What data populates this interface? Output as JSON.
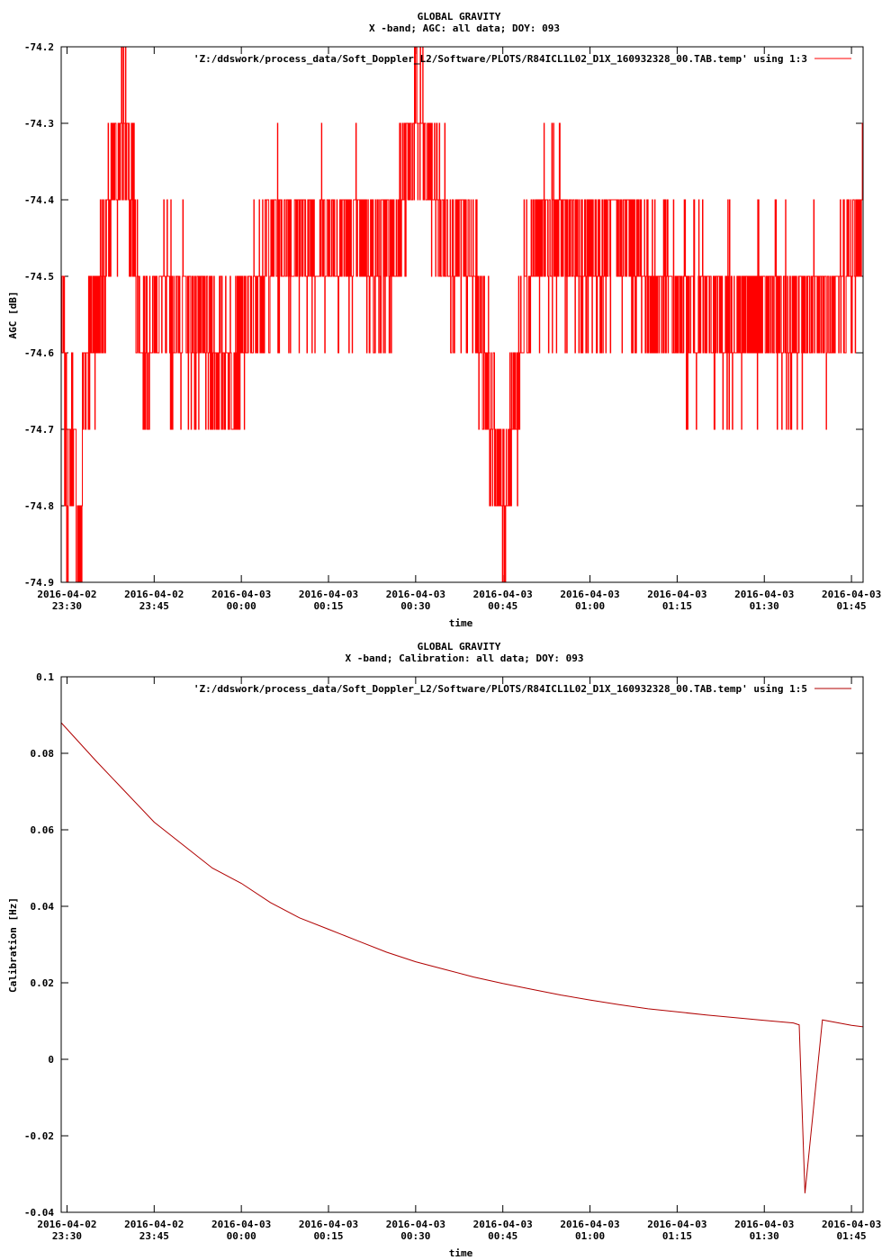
{
  "page": {
    "charts": [
      {
        "title": "GLOBAL GRAVITY",
        "subtitle": "X -band; AGC: all data; DOY: 093",
        "legend_label": "'Z:/ddswork/process_data/Soft_Doppler_L2/Software/PLOTS/R84ICL1L02_D1X_160932328_00.TAB.temp' using 1:3",
        "xlabel": "time",
        "ylabel": "AGC [dB]",
        "line_color": "#ff0000",
        "y_tick_labels": [
          "-74.2",
          "-74.3",
          "-74.4",
          "-74.5",
          "-74.6",
          "-74.7",
          "-74.8",
          "-74.9"
        ],
        "x_tick_labels": [
          [
            "2016-04-02",
            "23:30"
          ],
          [
            "2016-04-02",
            "23:45"
          ],
          [
            "2016-04-03",
            "00:00"
          ],
          [
            "2016-04-03",
            "00:15"
          ],
          [
            "2016-04-03",
            "00:30"
          ],
          [
            "2016-04-03",
            "00:45"
          ],
          [
            "2016-04-03",
            "01:00"
          ],
          [
            "2016-04-03",
            "01:15"
          ],
          [
            "2016-04-03",
            "01:30"
          ],
          [
            "2016-04-03",
            "01:45"
          ]
        ]
      },
      {
        "title": "GLOBAL GRAVITY",
        "subtitle": "X -band; Calibration: all data; DOY: 093",
        "legend_label": "'Z:/ddswork/process_data/Soft_Doppler_L2/Software/PLOTS/R84ICL1L02_D1X_160932328_00.TAB.temp' using 1:5",
        "xlabel": "time",
        "ylabel": "Calibration [Hz]",
        "line_color": "#ff0000",
        "y_tick_labels": [
          "0.1",
          "0.08",
          "0.06",
          "0.04",
          "0.02",
          "0",
          "-0.02",
          "-0.04"
        ],
        "x_tick_labels": [
          [
            "2016-04-02",
            "23:30"
          ],
          [
            "2016-04-02",
            "23:45"
          ],
          [
            "2016-04-03",
            "00:00"
          ],
          [
            "2016-04-03",
            "00:15"
          ],
          [
            "2016-04-03",
            "00:30"
          ],
          [
            "2016-04-03",
            "00:45"
          ],
          [
            "2016-04-03",
            "01:00"
          ],
          [
            "2016-04-03",
            "01:15"
          ],
          [
            "2016-04-03",
            "01:30"
          ],
          [
            "2016-04-03",
            "01:45"
          ]
        ]
      }
    ]
  },
  "chart_data": [
    {
      "type": "line",
      "title": "GLOBAL GRAVITY",
      "subtitle": "X -band; AGC: all data; DOY: 093",
      "xlabel": "time",
      "ylabel": "AGC [dB]",
      "x_range": [
        "2016-04-02 23:29",
        "2016-04-03 01:47"
      ],
      "ylim": [
        -74.9,
        -74.2
      ],
      "y_ticks": [
        -74.9,
        -74.8,
        -74.7,
        -74.6,
        -74.5,
        -74.4,
        -74.3,
        -74.2
      ],
      "x_ticks": [
        "2016-04-02 23:30",
        "2016-04-02 23:45",
        "2016-04-03 00:00",
        "2016-04-03 00:15",
        "2016-04-03 00:30",
        "2016-04-03 00:45",
        "2016-04-03 01:00",
        "2016-04-03 01:15",
        "2016-04-03 01:30",
        "2016-04-03 01:45"
      ],
      "grid": false,
      "legend_position": "top-right",
      "series": [
        {
          "name": "'Z:/ddswork/process_data/Soft_Doppler_L2/Software/PLOTS/R84ICL1L02_D1X_160932328_00.TAB.temp' using 1:3",
          "color": "#ff0000",
          "x": [
            "2016-04-02 23:29",
            "2016-04-02 23:30",
            "2016-04-02 23:31",
            "2016-04-02 23:32",
            "2016-04-02 23:33",
            "2016-04-02 23:35",
            "2016-04-02 23:40",
            "2016-04-02 23:43",
            "2016-04-02 23:45",
            "2016-04-02 23:50",
            "2016-04-02 23:55",
            "2016-04-03 00:00",
            "2016-04-03 00:05",
            "2016-04-03 00:10",
            "2016-04-03 00:15",
            "2016-04-03 00:20",
            "2016-04-03 00:25",
            "2016-04-03 00:30",
            "2016-04-03 00:35",
            "2016-04-03 00:40",
            "2016-04-03 00:45",
            "2016-04-03 00:50",
            "2016-04-03 00:55",
            "2016-04-03 01:00",
            "2016-04-03 01:05",
            "2016-04-03 01:10",
            "2016-04-03 01:15",
            "2016-04-03 01:20",
            "2016-04-03 01:25",
            "2016-04-03 01:30",
            "2016-04-03 01:35",
            "2016-04-03 01:40",
            "2016-04-03 01:45",
            "2016-04-03 01:47"
          ],
          "y": [
            -74.5,
            -74.8,
            -74.7,
            -74.9,
            -74.6,
            -74.55,
            -74.3,
            -74.6,
            -74.55,
            -74.55,
            -74.6,
            -74.6,
            -74.45,
            -74.45,
            -74.45,
            -74.45,
            -74.5,
            -74.3,
            -74.45,
            -74.5,
            -74.8,
            -74.45,
            -74.45,
            -74.5,
            -74.45,
            -74.5,
            -74.55,
            -74.55,
            -74.55,
            -74.55,
            -74.55,
            -74.55,
            -74.5,
            -74.4
          ]
        }
      ]
    },
    {
      "type": "line",
      "title": "GLOBAL GRAVITY",
      "subtitle": "X -band; Calibration: all data; DOY: 093",
      "xlabel": "time",
      "ylabel": "Calibration [Hz]",
      "x_range": [
        "2016-04-02 23:29",
        "2016-04-03 01:47"
      ],
      "ylim": [
        -0.04,
        0.1
      ],
      "y_ticks": [
        -0.04,
        -0.02,
        0,
        0.02,
        0.04,
        0.06,
        0.08,
        0.1
      ],
      "x_ticks": [
        "2016-04-02 23:30",
        "2016-04-02 23:45",
        "2016-04-03 00:00",
        "2016-04-03 00:15",
        "2016-04-03 00:30",
        "2016-04-03 00:45",
        "2016-04-03 01:00",
        "2016-04-03 01:15",
        "2016-04-03 01:30",
        "2016-04-03 01:45"
      ],
      "grid": false,
      "legend_position": "top-right",
      "series": [
        {
          "name": "'Z:/ddswork/process_data/Soft_Doppler_L2/Software/PLOTS/R84ICL1L02_D1X_160932328_00.TAB.temp' using 1:5",
          "color": "#b00000",
          "x": [
            "2016-04-02 23:29",
            "2016-04-02 23:35",
            "2016-04-02 23:40",
            "2016-04-02 23:45",
            "2016-04-02 23:50",
            "2016-04-02 23:55",
            "2016-04-03 00:00",
            "2016-04-03 00:05",
            "2016-04-03 00:10",
            "2016-04-03 00:15",
            "2016-04-03 00:20",
            "2016-04-03 00:25",
            "2016-04-03 00:30",
            "2016-04-03 00:35",
            "2016-04-03 00:40",
            "2016-04-03 00:45",
            "2016-04-03 00:50",
            "2016-04-03 00:55",
            "2016-04-03 01:00",
            "2016-04-03 01:05",
            "2016-04-03 01:10",
            "2016-04-03 01:15",
            "2016-04-03 01:20",
            "2016-04-03 01:25",
            "2016-04-03 01:30",
            "2016-04-03 01:35",
            "2016-04-03 01:36",
            "2016-04-03 01:37",
            "2016-04-03 01:40",
            "2016-04-03 01:45",
            "2016-04-03 01:47"
          ],
          "y": [
            0.088,
            0.078,
            0.07,
            0.062,
            0.056,
            0.05,
            0.046,
            0.041,
            0.037,
            0.034,
            0.031,
            0.028,
            0.0255,
            0.0235,
            0.0215,
            0.0198,
            0.0183,
            0.0168,
            0.0155,
            0.0143,
            0.0132,
            0.0124,
            0.0116,
            0.0109,
            0.0102,
            0.0095,
            0.009,
            -0.035,
            0.0103,
            0.0089,
            0.0085
          ]
        }
      ]
    }
  ]
}
